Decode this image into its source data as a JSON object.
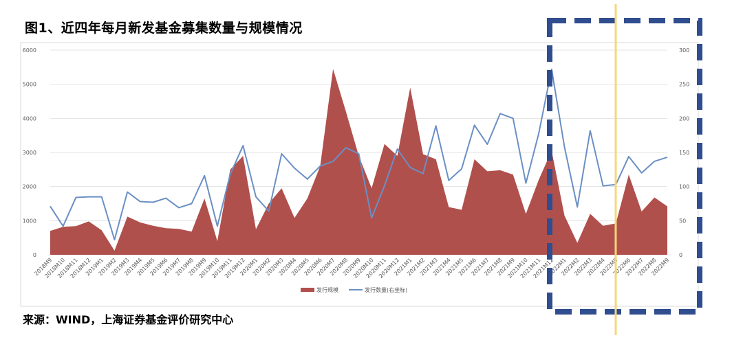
{
  "title": "图1、近四年每月新发基金募集数量与规模情况",
  "source": "来源：WIND，上海证券基金评价研究中心",
  "colors": {
    "area": "#b0504c",
    "line": "#6a8fc4",
    "highlight_box": "#2f4d8f",
    "marker_line": "#f5d77a"
  },
  "chart_data": {
    "type": "area",
    "categories": [
      "2018M9",
      "2018M10",
      "2018M11",
      "2018M12",
      "2019M1",
      "2019M2",
      "2019M3",
      "2019M4",
      "2019M5",
      "2019M6",
      "2019M7",
      "2019M8",
      "2019M9",
      "2019M10",
      "2019M11",
      "2019M12",
      "2020M1",
      "2020M2",
      "2020M3",
      "2020M4",
      "2020M5",
      "2020M6",
      "2020M7",
      "2020M8",
      "2020M9",
      "2020M10",
      "2020M11",
      "2020M12",
      "2021M1",
      "2021M2",
      "2021M3",
      "2021M4",
      "2021M5",
      "2021M6",
      "2021M7",
      "2021M8",
      "2021M9",
      "2021M10",
      "2021M11",
      "2021M12",
      "2022M1",
      "2022M2",
      "2022M3",
      "2022M4",
      "2022M5",
      "2022M6",
      "2022M7",
      "2022M8",
      "2022M9"
    ],
    "series": [
      {
        "name": "发行规模",
        "type": "area",
        "axis": "left",
        "values": [
          700,
          820,
          840,
          980,
          720,
          120,
          1120,
          950,
          850,
          780,
          760,
          680,
          1650,
          400,
          2500,
          2900,
          750,
          1500,
          1950,
          1080,
          1650,
          2600,
          5450,
          4200,
          2900,
          1950,
          3250,
          2900,
          4900,
          2950,
          2800,
          1400,
          1320,
          2800,
          2450,
          2480,
          2350,
          1200,
          2200,
          3050,
          1150,
          350,
          1200,
          850,
          920,
          2350,
          1270,
          1680,
          1420
        ]
      },
      {
        "name": "发行数量(右坐标)",
        "type": "line",
        "axis": "right",
        "values": [
          71,
          42,
          84,
          85,
          85,
          22,
          92,
          78,
          77,
          83,
          69,
          75,
          116,
          42,
          118,
          160,
          85,
          64,
          148,
          127,
          111,
          130,
          137,
          157,
          148,
          54,
          101,
          155,
          128,
          119,
          189,
          109,
          126,
          190,
          162,
          207,
          200,
          105,
          178,
          272,
          158,
          70,
          182,
          101,
          103,
          144,
          120,
          137,
          143
        ]
      }
    ],
    "y_left": {
      "min": 0,
      "max": 6000,
      "ticks": [
        "0",
        "1000",
        "2000",
        "3000",
        "4000",
        "5000",
        "6000"
      ]
    },
    "y_right": {
      "min": 0,
      "max": 300,
      "ticks": [
        "0",
        "50",
        "100",
        "150",
        "200",
        "250",
        "300"
      ]
    },
    "legend_position": "bottom",
    "grid": "horizontal"
  }
}
